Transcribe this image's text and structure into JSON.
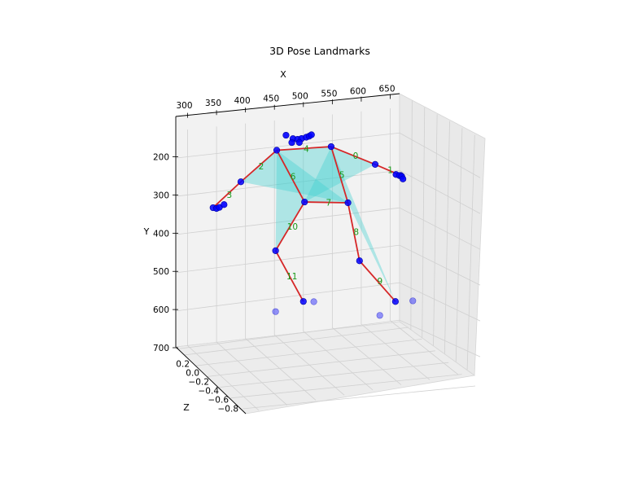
{
  "chart_data": {
    "type": "scatter3d",
    "title": "3D Pose Landmarks",
    "xlabel": "X",
    "ylabel": "Y",
    "zlabel": "Z",
    "xticks": [
      "300",
      "350",
      "400",
      "450",
      "500",
      "550",
      "600",
      "650"
    ],
    "yticks": [
      "200",
      "300",
      "400",
      "500",
      "600",
      "700"
    ],
    "zticks": [
      "0.2",
      "0.0",
      "−0.2",
      "−0.4",
      "−0.6",
      "−0.8"
    ],
    "y_axis_inverted": true,
    "grid": true,
    "colors": {
      "points": "#0000ff",
      "bones": "#d62728",
      "bone_labels": "#1a9a1a",
      "triangles": "#40d0d0"
    },
    "joints": {
      "right_shoulder": [
        454,
        212
      ],
      "left_shoulder": [
        548,
        218
      ],
      "right_elbow": [
        392,
        285
      ],
      "left_elbow": [
        624,
        278
      ],
      "right_wrist": [
        344,
        345
      ],
      "left_wrist": [
        668,
        315
      ],
      "right_hip": [
        502,
        357
      ],
      "left_hip": [
        577,
        372
      ],
      "right_knee": [
        452,
        477
      ],
      "left_knee": [
        597,
        530
      ],
      "right_ankle": [
        500,
        620
      ],
      "left_ankle": [
        659,
        650
      ]
    },
    "extra_points": {
      "face": [
        [
          470,
          175
        ],
        [
          482,
          186
        ],
        [
          490,
          189
        ],
        [
          497,
          188
        ],
        [
          505,
          186
        ],
        [
          510,
          184
        ],
        [
          514,
          181
        ],
        [
          480,
          196
        ],
        [
          493,
          198
        ]
      ],
      "right_hand": [
        [
          350,
          348
        ],
        [
          355,
          346
        ],
        [
          363,
          340
        ]
      ],
      "left_hand": [
        [
          660,
          311
        ],
        [
          666,
          315
        ],
        [
          670,
          318
        ],
        [
          672,
          325
        ]
      ],
      "feet": [
        [
          452,
          638
        ],
        [
          518,
          624
        ],
        [
          632,
          682
        ],
        [
          689,
          654
        ]
      ]
    },
    "bones": [
      {
        "label": "0",
        "from": "left_shoulder",
        "to": "left_elbow"
      },
      {
        "label": "1",
        "from": "left_elbow",
        "to": "left_wrist"
      },
      {
        "label": "2",
        "from": "right_shoulder",
        "to": "right_elbow"
      },
      {
        "label": "3",
        "from": "right_elbow",
        "to": "right_wrist"
      },
      {
        "label": "4",
        "from": "right_shoulder",
        "to": "left_shoulder"
      },
      {
        "label": "5",
        "from": "left_shoulder",
        "to": "left_hip"
      },
      {
        "label": "6",
        "from": "right_shoulder",
        "to": "right_hip"
      },
      {
        "label": "7",
        "from": "right_hip",
        "to": "left_hip"
      },
      {
        "label": "8",
        "from": "left_hip",
        "to": "left_knee"
      },
      {
        "label": "9",
        "from": "left_knee",
        "to": "left_ankle"
      },
      {
        "label": "10",
        "from": "right_hip",
        "to": "right_knee"
      },
      {
        "label": "11",
        "from": "right_knee",
        "to": "right_ankle"
      }
    ],
    "triangles": [
      [
        "right_shoulder",
        "left_shoulder",
        "left_hip"
      ],
      [
        "right_shoulder",
        "right_hip",
        "left_hip"
      ],
      [
        "right_shoulder",
        "right_elbow",
        "left_hip"
      ],
      [
        "left_shoulder",
        "left_elbow",
        "right_hip"
      ],
      [
        "right_shoulder",
        "right_hip",
        "right_knee"
      ],
      [
        "left_shoulder",
        "left_hip",
        "left_ankle"
      ]
    ]
  }
}
